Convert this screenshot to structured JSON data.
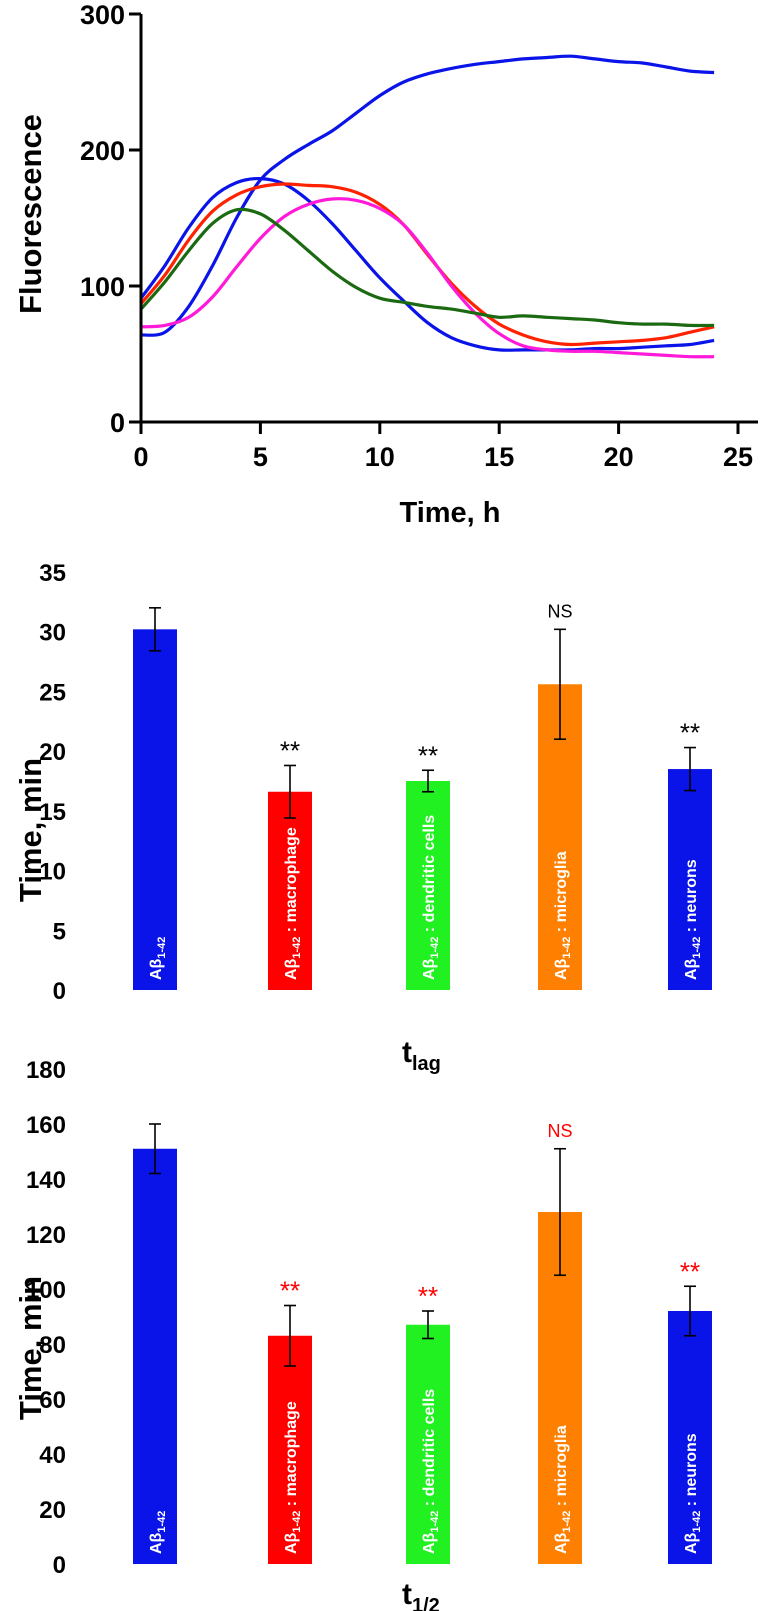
{
  "chart_data": [
    {
      "type": "line",
      "xlabel": "Time, h",
      "ylabel": "Fluorescence",
      "xlim": [
        0,
        25
      ],
      "ylim": [
        0,
        300
      ],
      "xticks": [
        "0",
        "5",
        "10",
        "15",
        "20",
        "25"
      ],
      "yticks": [
        "0",
        "100",
        "200",
        "300"
      ],
      "series": [
        {
          "name": "blue-high",
          "color": "#0a14e8",
          "x": [
            0,
            1,
            2,
            3,
            4,
            5,
            6,
            7,
            8,
            9,
            10,
            11,
            12,
            13,
            14,
            15,
            16,
            17,
            18,
            19,
            20,
            21,
            22,
            23,
            24
          ],
          "y": [
            64,
            66,
            85,
            115,
            150,
            178,
            193,
            204,
            214,
            227,
            240,
            250,
            256,
            260,
            263,
            265,
            267,
            268,
            269,
            267,
            265,
            264,
            261,
            258,
            257
          ]
        },
        {
          "name": "blue-early",
          "color": "#0a14e8",
          "x": [
            0,
            1,
            2,
            3,
            4,
            5,
            6,
            7,
            8,
            9,
            10,
            11,
            12,
            13,
            14,
            15,
            16,
            17,
            18,
            19,
            20,
            21,
            22,
            23,
            24
          ],
          "y": [
            91,
            115,
            143,
            165,
            176,
            179,
            175,
            163,
            146,
            126,
            106,
            89,
            73,
            62,
            56,
            53,
            53,
            53,
            53,
            54,
            54,
            55,
            56,
            57,
            60
          ]
        },
        {
          "name": "red",
          "color": "#ff2200",
          "x": [
            0,
            1,
            2,
            3,
            4,
            5,
            6,
            7,
            8,
            9,
            10,
            11,
            12,
            13,
            14,
            15,
            16,
            17,
            18,
            19,
            20,
            21,
            22,
            23,
            24
          ],
          "y": [
            87,
            108,
            134,
            155,
            167,
            173,
            175,
            174,
            173,
            169,
            160,
            145,
            123,
            102,
            85,
            72,
            64,
            59,
            57,
            58,
            59,
            60,
            62,
            66,
            70
          ]
        },
        {
          "name": "magenta",
          "color": "#ff1ad9",
          "x": [
            0,
            1,
            2,
            3,
            4,
            5,
            6,
            7,
            8,
            9,
            10,
            11,
            12,
            13,
            14,
            15,
            16,
            17,
            18,
            19,
            20,
            21,
            22,
            23,
            24
          ],
          "y": [
            70,
            71,
            77,
            92,
            114,
            135,
            151,
            160,
            164,
            163,
            157,
            145,
            124,
            100,
            80,
            65,
            56,
            53,
            52,
            52,
            51,
            50,
            49,
            48,
            48
          ]
        },
        {
          "name": "green",
          "color": "#1b6a12",
          "x": [
            0,
            1,
            2,
            3,
            4,
            5,
            6,
            7,
            8,
            9,
            10,
            11,
            12,
            13,
            14,
            15,
            16,
            17,
            18,
            19,
            20,
            21,
            22,
            23,
            24
          ],
          "y": [
            83,
            103,
            126,
            146,
            156,
            153,
            141,
            126,
            111,
            99,
            91,
            88,
            85,
            83,
            80,
            77,
            78,
            77,
            76,
            75,
            73,
            72,
            72,
            71,
            71
          ]
        }
      ]
    },
    {
      "type": "bar",
      "xlabel": "t",
      "xlabel_sub": "lag",
      "ylabel": "Time, min",
      "ylim": [
        0,
        35
      ],
      "yticks": [
        "0",
        "5",
        "10",
        "15",
        "20",
        "25",
        "30",
        "35"
      ],
      "categories": [
        "Aβ1-42",
        "Aβ1-42 : macrophage",
        "Aβ1-42 : dendritic cells",
        "Aβ1-42 : microglia",
        "Aβ1-42 : neurons"
      ],
      "bar_labels": [
        {
          "main": "Aβ",
          "sub": "1-42",
          "rest": ""
        },
        {
          "main": "Aβ",
          "sub": "1-42",
          "rest": " : macrophage"
        },
        {
          "main": "Aβ",
          "sub": "1-42",
          "rest": " : dendritic cells"
        },
        {
          "main": "Aβ",
          "sub": "1-42",
          "rest": " : microglia"
        },
        {
          "main": "Aβ",
          "sub": "1-42",
          "rest": " : neurons"
        }
      ],
      "values": [
        30.2,
        16.6,
        17.5,
        25.6,
        18.5
      ],
      "errors": [
        1.8,
        2.2,
        0.9,
        4.6,
        1.8
      ],
      "colors": [
        "#0a14e8",
        "#ff0000",
        "#21f021",
        "#ff8000",
        "#0a14e8"
      ],
      "annotations": [
        "",
        "**",
        "**",
        "NS",
        "**"
      ],
      "annotation_color": "#000000"
    },
    {
      "type": "bar",
      "xlabel": "t",
      "xlabel_sub": "1/2",
      "ylabel": "Time, min",
      "ylim": [
        0,
        180
      ],
      "yticks": [
        "0",
        "20",
        "40",
        "60",
        "80",
        "100",
        "120",
        "140",
        "160",
        "180"
      ],
      "categories": [
        "Aβ1-42",
        "Aβ1-42 : macrophage",
        "Aβ1-42 : dendritic cells",
        "Aβ1-42 : microglia",
        "Aβ1-42 : neurons"
      ],
      "bar_labels": [
        {
          "main": "Aβ",
          "sub": "1-42",
          "rest": ""
        },
        {
          "main": "Aβ",
          "sub": "1-42",
          "rest": " : macrophage"
        },
        {
          "main": "Aβ",
          "sub": "1-42",
          "rest": " : dendritic cells"
        },
        {
          "main": "Aβ",
          "sub": "1-42",
          "rest": " : microglia"
        },
        {
          "main": "Aβ",
          "sub": "1-42",
          "rest": " : neurons"
        }
      ],
      "values": [
        151,
        83,
        87,
        128,
        92
      ],
      "errors": [
        9,
        11,
        5,
        23,
        9
      ],
      "colors": [
        "#0a14e8",
        "#ff0000",
        "#21f021",
        "#ff8000",
        "#0a14e8"
      ],
      "annotations": [
        "",
        "**",
        "**",
        "NS",
        "**"
      ],
      "annotation_color": "#ff0000"
    }
  ]
}
